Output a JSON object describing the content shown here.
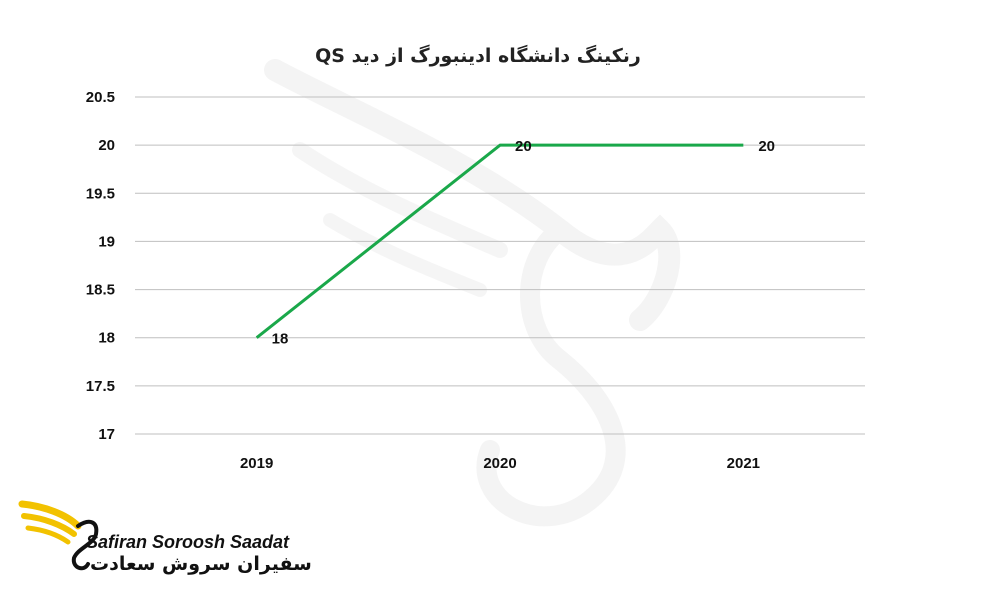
{
  "chart_data": {
    "type": "line",
    "title": "رنکینگ دانشگاه ادینبورگ از دید QS",
    "categories": [
      "2019",
      "2020",
      "2021"
    ],
    "series": [
      {
        "values": [
          18,
          20,
          20
        ],
        "color": "#1aa84a"
      }
    ],
    "data_labels": [
      "18",
      "20",
      "20"
    ],
    "ylim": [
      17,
      20.5
    ],
    "yticks": [
      "17",
      "17.5",
      "18",
      "18.5",
      "19",
      "19.5",
      "20",
      "20.5"
    ],
    "grid": true,
    "gridline_color": "#bfbfbf"
  },
  "brand": {
    "name_en": "Safiran Soroosh Saadat",
    "name_fa": "سفیران سروش سعادت",
    "logo_color": "#f2c200"
  }
}
